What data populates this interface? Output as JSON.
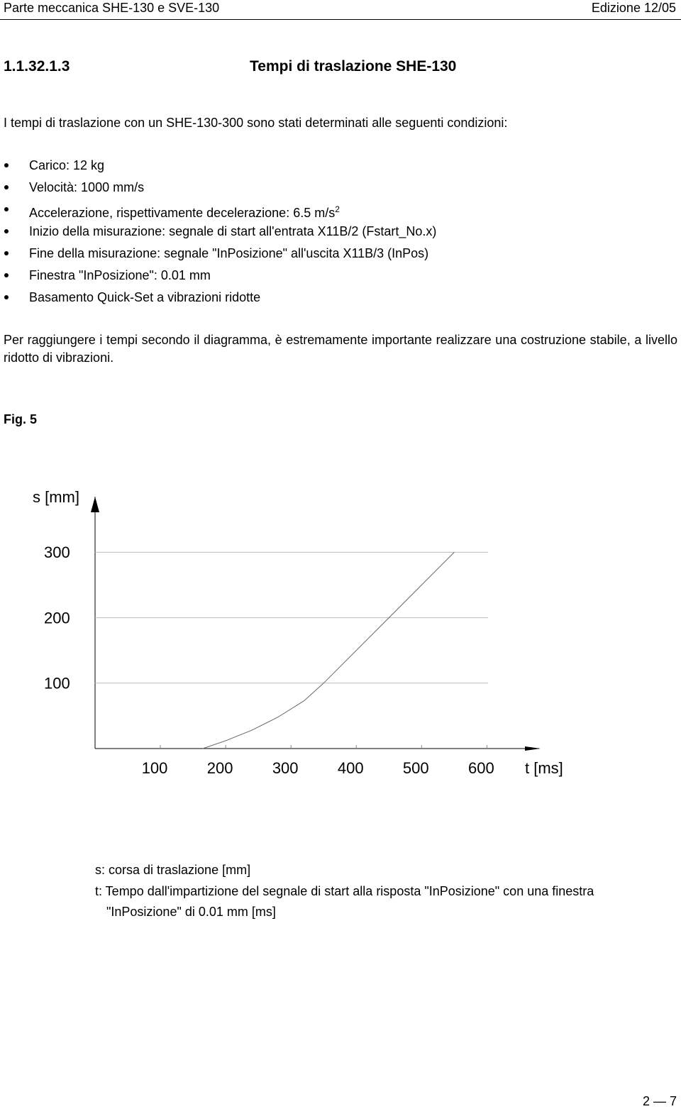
{
  "header": {
    "left": "Parte meccanica SHE-130 e SVE-130",
    "right": "Edizione 12/05"
  },
  "section": {
    "number": "1.1.32.1.3",
    "title": "Tempi di traslazione SHE-130"
  },
  "intro": "I tempi di traslazione con un SHE-130-300 sono stati determinati alle seguenti condizioni:",
  "conditions": [
    {
      "text": "Carico: 12 kg"
    },
    {
      "text": "Velocità: 1000 mm/s"
    },
    {
      "text": "Accelerazione, rispettivamente decelerazione: 6.5 m/s",
      "sup": "2"
    },
    {
      "text": "Inizio della misurazione: segnale di start all'entrata X11B/2 (Fstart_No.x)"
    },
    {
      "text": "Fine della misurazione: segnale \"InPosizione\" all'uscita X11B/3 (InPos)"
    },
    {
      "text": "Finestra \"InPosizione\": 0.01 mm"
    },
    {
      "text": "Basamento Quick-Set a vibrazioni ridotte"
    }
  ],
  "note": "Per raggiungere i tempi secondo il diagramma, è estremamente importante realizzare una costruzione stabile, a livello ridotto di vibrazioni.",
  "figure_label": "Fig. 5",
  "chart_data": {
    "type": "line",
    "y_label": "s [mm]",
    "x_label": "t [ms]",
    "x": [
      165,
      200,
      240,
      280,
      320,
      350,
      450,
      550
    ],
    "values": [
      0,
      12,
      28,
      48,
      73,
      100,
      200,
      300
    ],
    "color": "#666666",
    "xlim": [
      0,
      680
    ],
    "ylim": [
      0,
      385
    ],
    "xticks": [
      100,
      200,
      300,
      400,
      500,
      600
    ],
    "yticks": [
      100,
      200,
      300
    ],
    "grid": true
  },
  "legend": [
    "s: corsa di traslazione [mm]",
    "t: Tempo dall'impartizione del segnale di start alla risposta \"InPosizione\" con una finestra",
    "\"InPosizione\" di 0.01 mm [ms]"
  ],
  "footer": "2 — 7"
}
